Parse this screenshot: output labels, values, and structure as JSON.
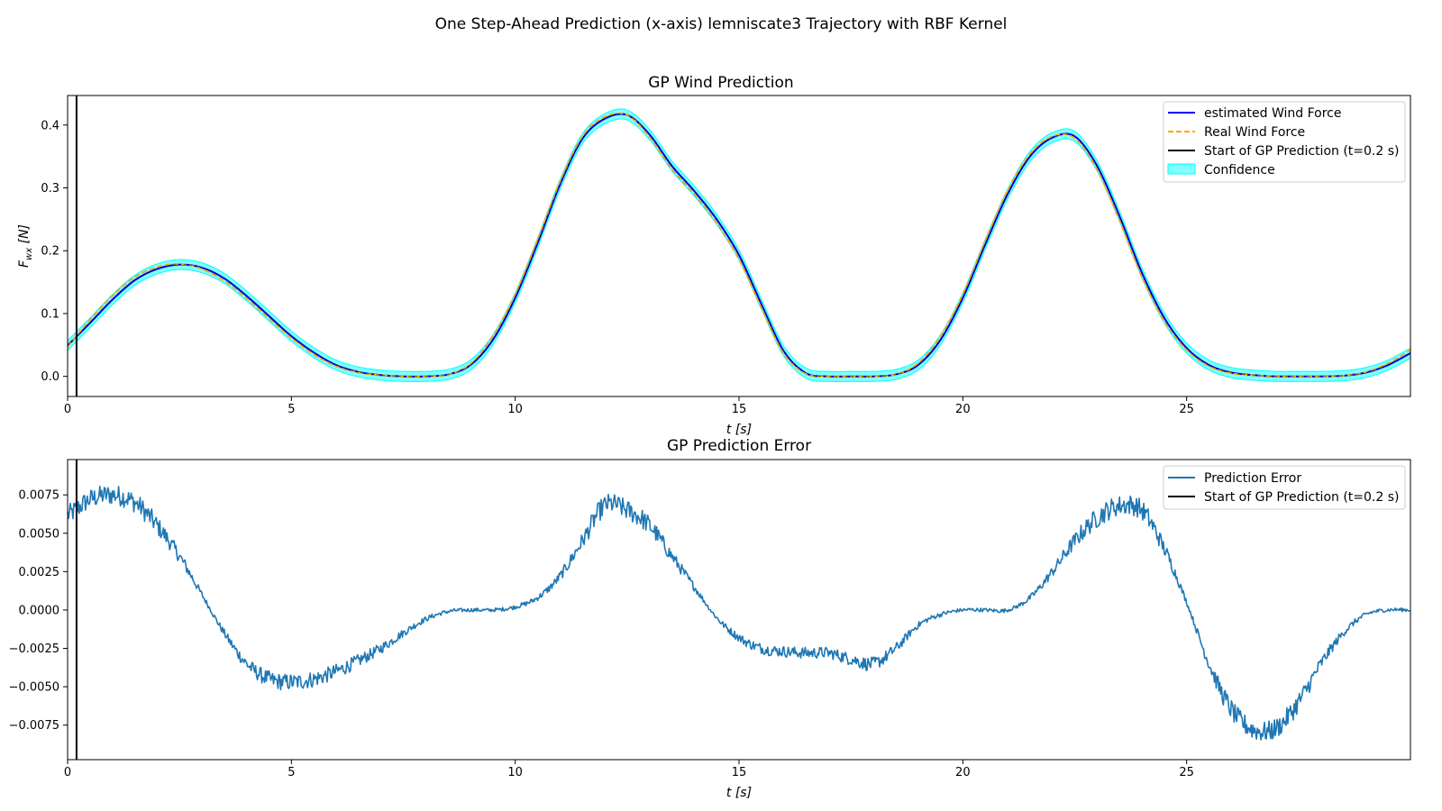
{
  "figure": {
    "suptitle": "One Step-Ahead Prediction (x-axis) lemniscate3 Trajectory with RBF Kernel"
  },
  "colors": {
    "estimated": "#0000ff",
    "real": "#ffa500",
    "start_line": "#000000",
    "confidence": "#00ffff",
    "error": "#1f77b4"
  },
  "chart_data": [
    {
      "type": "line",
      "title": "GP Wind Prediction",
      "xlabel": "t [s]",
      "ylabel_main": "F",
      "ylabel_sub": "wx",
      "ylabel_unit": " [N]",
      "xlim": [
        0,
        30
      ],
      "ylim": [
        -0.032,
        0.447
      ],
      "xticks": [
        0,
        5,
        10,
        15,
        20,
        25
      ],
      "yticks": [
        0.0,
        0.1,
        0.2,
        0.3,
        0.4
      ],
      "ytick_labels": [
        "0.0",
        "0.1",
        "0.2",
        "0.3",
        "0.4"
      ],
      "legend_position": "upper right",
      "vline_x": 0.2,
      "series": [
        {
          "name": "estimated Wind Force",
          "style": "solid",
          "x": [
            0,
            0.5,
            1,
            1.5,
            2,
            2.5,
            3,
            3.5,
            4,
            4.5,
            5,
            5.5,
            6,
            6.5,
            7,
            7.5,
            8,
            8.5,
            9,
            9.5,
            10,
            10.5,
            11,
            11.5,
            12,
            12.5,
            13,
            13.5,
            14,
            14.5,
            15,
            15.5,
            16,
            16.5,
            17,
            17.5,
            18,
            18.5,
            19,
            19.5,
            20,
            20.5,
            21,
            21.5,
            22,
            22.5,
            23,
            23.5,
            24,
            24.5,
            25,
            25.5,
            26,
            26.5,
            27,
            27.5,
            28,
            28.5,
            29,
            29.5,
            30
          ],
          "values": [
            0.049,
            0.085,
            0.122,
            0.153,
            0.171,
            0.178,
            0.173,
            0.156,
            0.128,
            0.096,
            0.064,
            0.038,
            0.018,
            0.007,
            0.002,
            0.0,
            0.0,
            0.003,
            0.018,
            0.058,
            0.125,
            0.212,
            0.305,
            0.378,
            0.41,
            0.416,
            0.385,
            0.335,
            0.295,
            0.25,
            0.193,
            0.115,
            0.04,
            0.005,
            0.0,
            0.0,
            0.0,
            0.003,
            0.018,
            0.058,
            0.125,
            0.21,
            0.29,
            0.35,
            0.38,
            0.382,
            0.335,
            0.255,
            0.165,
            0.093,
            0.045,
            0.018,
            0.006,
            0.002,
            0.0,
            0.0,
            0.0,
            0.001,
            0.006,
            0.018,
            0.037
          ]
        },
        {
          "name": "Real Wind Force",
          "style": "dashed",
          "x": [
            0,
            0.5,
            1,
            1.5,
            2,
            2.5,
            3,
            3.5,
            4,
            4.5,
            5,
            5.5,
            6,
            6.5,
            7,
            7.5,
            8,
            8.5,
            9,
            9.5,
            10,
            10.5,
            11,
            11.5,
            12,
            12.5,
            13,
            13.5,
            14,
            14.5,
            15,
            15.5,
            16,
            16.5,
            17,
            17.5,
            18,
            18.5,
            19,
            19.5,
            20,
            20.5,
            21,
            21.5,
            22,
            22.5,
            23,
            23.5,
            24,
            24.5,
            25,
            25.5,
            26,
            26.5,
            27,
            27.5,
            28,
            28.5,
            29,
            29.5,
            30
          ],
          "values": [
            0.047,
            0.09,
            0.128,
            0.158,
            0.174,
            0.179,
            0.171,
            0.152,
            0.124,
            0.092,
            0.061,
            0.035,
            0.016,
            0.006,
            0.002,
            0.0,
            0.0,
            0.003,
            0.02,
            0.064,
            0.131,
            0.218,
            0.31,
            0.382,
            0.413,
            0.416,
            0.381,
            0.33,
            0.29,
            0.244,
            0.186,
            0.109,
            0.036,
            0.004,
            0.0,
            0.0,
            0.0,
            0.003,
            0.021,
            0.064,
            0.131,
            0.216,
            0.296,
            0.354,
            0.382,
            0.379,
            0.329,
            0.248,
            0.158,
            0.088,
            0.042,
            0.016,
            0.005,
            0.002,
            0.0,
            0.0,
            0.0,
            0.001,
            0.007,
            0.021,
            0.042
          ]
        },
        {
          "name": "Start of GP Prediction (t=0.2 s)",
          "style": "vline"
        },
        {
          "name": "Confidence",
          "style": "band",
          "band_halfwidth": 0.008
        }
      ]
    },
    {
      "type": "line",
      "title": "GP Prediction Error",
      "xlabel": "t [s]",
      "xlim": [
        0,
        30
      ],
      "ylim": [
        -0.00975,
        0.0098
      ],
      "xticks": [
        0,
        5,
        10,
        15,
        20,
        25
      ],
      "yticks": [
        -0.0075,
        -0.005,
        -0.0025,
        0.0,
        0.0025,
        0.005,
        0.0075
      ],
      "ytick_labels": [
        "−0.0075",
        "−0.0050",
        "−0.0025",
        "0.0000",
        "0.0025",
        "0.0050",
        "0.0075"
      ],
      "legend_position": "upper right",
      "vline_x": 0.2,
      "series": [
        {
          "name": "Prediction Error",
          "style": "solid",
          "x": [
            0,
            0.5,
            1,
            1.5,
            2,
            2.5,
            3,
            3.5,
            4,
            4.5,
            5,
            5.5,
            6,
            6.5,
            7,
            7.5,
            8,
            8.5,
            9,
            9.5,
            10,
            10.5,
            11,
            11.5,
            12,
            12.5,
            13,
            13.5,
            14,
            14.5,
            15,
            15.5,
            16,
            16.5,
            17,
            17.5,
            18,
            18.5,
            19,
            19.5,
            20,
            20.5,
            21,
            21.5,
            22,
            22.5,
            23,
            23.5,
            24,
            24.5,
            25,
            25.5,
            26,
            26.5,
            27,
            27.5,
            28,
            28.5,
            29,
            29.5,
            30
          ],
          "values": [
            0.0062,
            0.0072,
            0.0075,
            0.007,
            0.0055,
            0.0035,
            0.001,
            -0.0015,
            -0.0035,
            -0.0045,
            -0.0047,
            -0.0045,
            -0.004,
            -0.0033,
            -0.0025,
            -0.0015,
            -0.0006,
            -0.0001,
            0.0,
            0.0,
            0.0002,
            0.0008,
            0.0022,
            0.0045,
            0.0068,
            0.0065,
            0.0055,
            0.0035,
            0.0015,
            -0.0005,
            -0.0018,
            -0.0025,
            -0.0027,
            -0.0028,
            -0.0028,
            -0.0032,
            -0.0035,
            -0.0025,
            -0.001,
            -0.0003,
            0.0,
            0.0,
            0.0,
            0.0008,
            0.0025,
            0.0045,
            0.006,
            0.0068,
            0.0065,
            0.004,
            0.0005,
            -0.0035,
            -0.0065,
            -0.0078,
            -0.0077,
            -0.006,
            -0.0035,
            -0.0015,
            -0.0003,
            0.0,
            0.0
          ]
        },
        {
          "name": "Start of GP Prediction (t=0.2 s)",
          "style": "vline"
        }
      ]
    }
  ]
}
